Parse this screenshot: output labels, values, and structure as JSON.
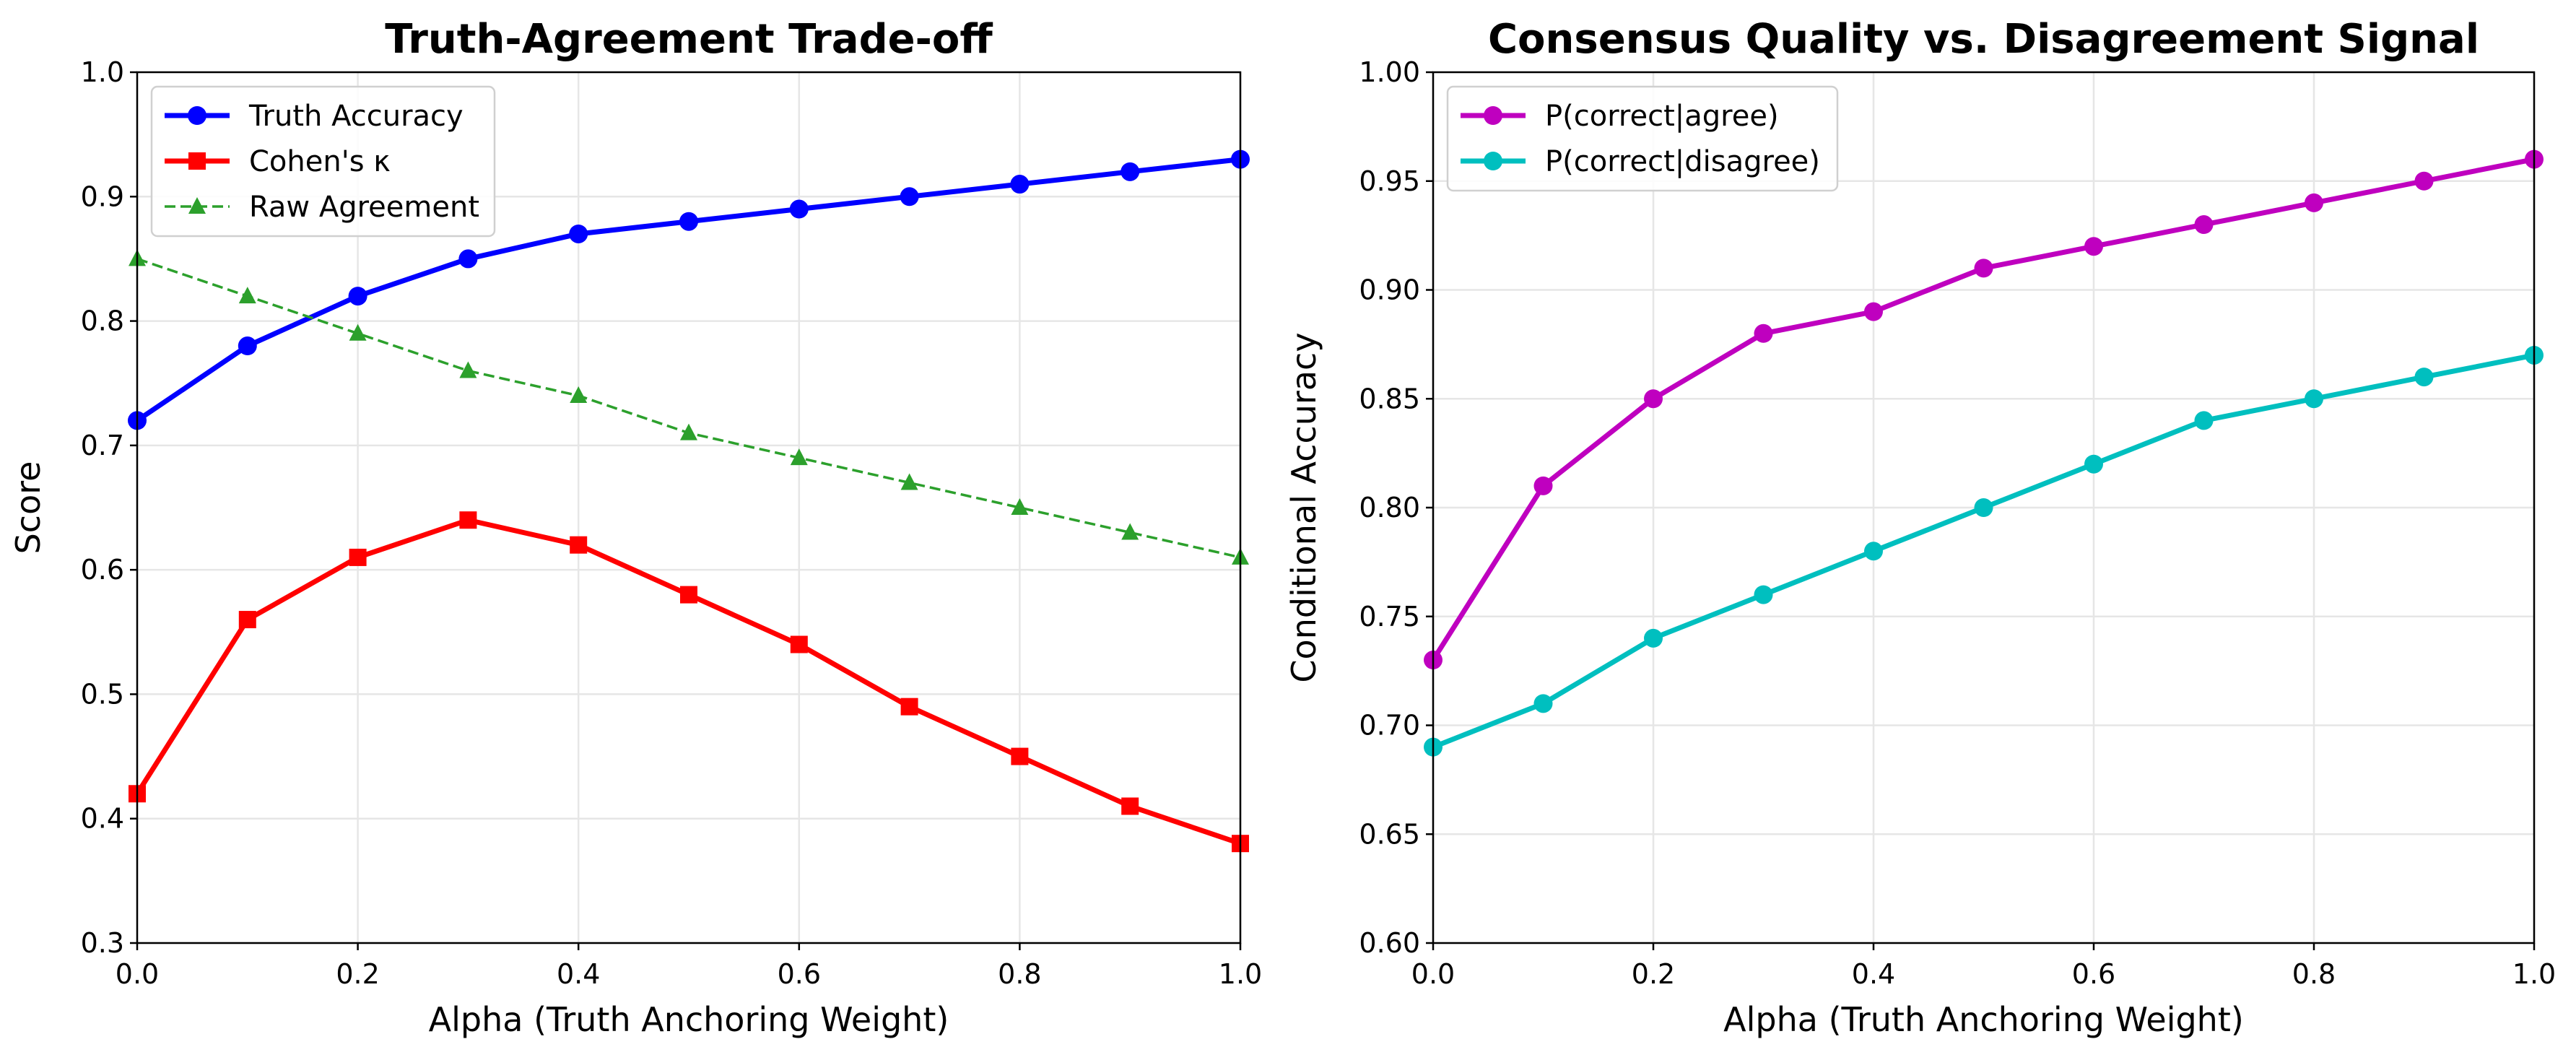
{
  "chart_data": [
    {
      "type": "line",
      "title": "Truth-Agreement Trade-off",
      "xlabel": "Alpha (Truth Anchoring Weight)",
      "ylabel": "Score",
      "xlim": [
        0.0,
        1.0
      ],
      "ylim": [
        0.3,
        1.0
      ],
      "xticks": [
        "0.0",
        "0.2",
        "0.4",
        "0.6",
        "0.8",
        "1.0"
      ],
      "yticks": [
        "0.3",
        "0.4",
        "0.5",
        "0.6",
        "0.7",
        "0.8",
        "0.9",
        "1.0"
      ],
      "grid": true,
      "legend_position": "upper-left",
      "x": [
        0.0,
        0.1,
        0.2,
        0.3,
        0.4,
        0.5,
        0.6,
        0.7,
        0.8,
        0.9,
        1.0
      ],
      "series": [
        {
          "name": "Truth Accuracy",
          "color": "#0000ff",
          "marker": "circle",
          "linestyle": "solid",
          "values": [
            0.72,
            0.78,
            0.82,
            0.85,
            0.87,
            0.88,
            0.89,
            0.9,
            0.91,
            0.92,
            0.93
          ]
        },
        {
          "name": "Cohen's κ",
          "color": "#ff0000",
          "marker": "square",
          "linestyle": "solid",
          "values": [
            0.42,
            0.56,
            0.61,
            0.64,
            0.62,
            0.58,
            0.54,
            0.49,
            0.45,
            0.41,
            0.38
          ]
        },
        {
          "name": "Raw Agreement",
          "color": "#2ca02c",
          "marker": "triangle",
          "linestyle": "dashed",
          "values": [
            0.85,
            0.82,
            0.79,
            0.76,
            0.74,
            0.71,
            0.69,
            0.67,
            0.65,
            0.63,
            0.61
          ]
        }
      ]
    },
    {
      "type": "line",
      "title": "Consensus Quality vs. Disagreement Signal",
      "xlabel": "Alpha (Truth Anchoring Weight)",
      "ylabel": "Conditional Accuracy",
      "xlim": [
        0.0,
        1.0
      ],
      "ylim": [
        0.6,
        1.0
      ],
      "xticks": [
        "0.0",
        "0.2",
        "0.4",
        "0.6",
        "0.8",
        "1.0"
      ],
      "yticks": [
        "0.60",
        "0.65",
        "0.70",
        "0.75",
        "0.80",
        "0.85",
        "0.90",
        "0.95",
        "1.00"
      ],
      "grid": true,
      "legend_position": "upper-left",
      "x": [
        0.0,
        0.1,
        0.2,
        0.3,
        0.4,
        0.5,
        0.6,
        0.7,
        0.8,
        0.9,
        1.0
      ],
      "series": [
        {
          "name": "P(correct|agree)",
          "color": "#bf00bf",
          "marker": "circle",
          "linestyle": "solid",
          "values": [
            0.73,
            0.81,
            0.85,
            0.88,
            0.89,
            0.91,
            0.92,
            0.93,
            0.94,
            0.95,
            0.96
          ]
        },
        {
          "name": "P(correct|disagree)",
          "color": "#00bfbf",
          "marker": "circle",
          "linestyle": "solid",
          "values": [
            0.69,
            0.71,
            0.74,
            0.76,
            0.78,
            0.8,
            0.82,
            0.84,
            0.85,
            0.86,
            0.87
          ]
        }
      ]
    }
  ]
}
